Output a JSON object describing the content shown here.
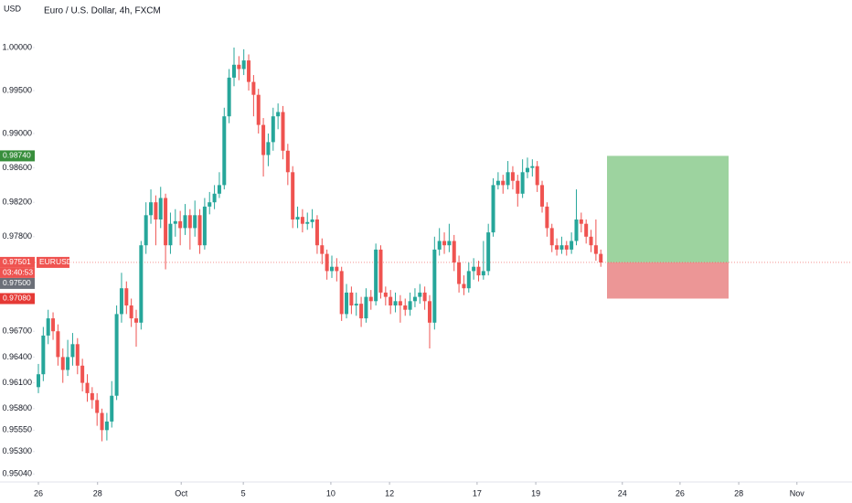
{
  "chart_data": {
    "type": "candlestick",
    "title": "Euro / U.S. Dollar, 4h, FXCM",
    "y_unit": "USD",
    "up_color": "#26a69a",
    "down_color": "#ef5350",
    "grid": false,
    "ylim": [
      0.94947,
      1.00553
    ],
    "yticks": [
      {
        "value": 1.0,
        "label": "1.00000"
      },
      {
        "value": 0.995,
        "label": "0.99500"
      },
      {
        "value": 0.99,
        "label": "0.99000"
      },
      {
        "value": 0.986,
        "label": "0.98600"
      },
      {
        "value": 0.982,
        "label": "0.98200"
      },
      {
        "value": 0.978,
        "label": "0.97800"
      },
      {
        "value": 0.967,
        "label": "0.96700"
      },
      {
        "value": 0.964,
        "label": "0.96400"
      },
      {
        "value": 0.961,
        "label": "0.96100"
      },
      {
        "value": 0.958,
        "label": "0.95800"
      },
      {
        "value": 0.9555,
        "label": "0.95550"
      },
      {
        "value": 0.953,
        "label": "0.95300"
      },
      {
        "value": 0.9504,
        "label": "0.95040"
      }
    ],
    "xlim": [
      -7.85,
      166.36
    ],
    "xticks": [
      {
        "value": 0,
        "label": "26"
      },
      {
        "value": 12.1,
        "label": "28"
      },
      {
        "value": 29.2,
        "label": "Oct"
      },
      {
        "value": 41.9,
        "label": "5"
      },
      {
        "value": 59.8,
        "label": "10"
      },
      {
        "value": 71.8,
        "label": "12"
      },
      {
        "value": 89.7,
        "label": "17"
      },
      {
        "value": 101.7,
        "label": "19"
      },
      {
        "value": 119.4,
        "label": "24"
      },
      {
        "value": 131.2,
        "label": "26"
      },
      {
        "value": 143.2,
        "label": "28"
      },
      {
        "value": 155.1,
        "label": "Nov"
      }
    ],
    "open": [
      0.9605,
      0.962,
      0.9665,
      0.9685,
      0.967,
      0.964,
      0.9625,
      0.964,
      0.9655,
      0.963,
      0.961,
      0.9598,
      0.959,
      0.9575,
      0.9555,
      0.9565,
      0.9595,
      0.969,
      0.972,
      0.97,
      0.9685,
      0.968,
      0.977,
      0.9805,
      0.982,
      0.98,
      0.9825,
      0.977,
      0.9795,
      0.9798,
      0.979,
      0.9805,
      0.979,
      0.9805,
      0.977,
      0.9815,
      0.982,
      0.983,
      0.984,
      0.992,
      0.9965,
      0.998,
      0.9975,
      0.9985,
      0.996,
      0.9945,
      0.991,
      0.9875,
      0.989,
      0.992,
      0.9925,
      0.988,
      0.9855,
      0.98,
      0.9803,
      0.9795,
      0.9797,
      0.98,
      0.977,
      0.976,
      0.974,
      0.9745,
      0.974,
      0.969,
      0.9715,
      0.97,
      0.9702,
      0.9685,
      0.971,
      0.9705,
      0.9765,
      0.9715,
      0.971,
      0.97,
      0.9705,
      0.97,
      0.9695,
      0.9705,
      0.971,
      0.9715,
      0.9705,
      0.968,
      0.9765,
      0.9775,
      0.977,
      0.9775,
      0.975,
      0.9725,
      0.972,
      0.974,
      0.9745,
      0.9735,
      0.974,
      0.9785,
      0.984,
      0.9845,
      0.984,
      0.9855,
      0.9845,
      0.983,
      0.9855,
      0.986,
      0.9862,
      0.984,
      0.9815,
      0.979,
      0.977,
      0.9765,
      0.977,
      0.9765,
      0.9775,
      0.98,
      0.9795,
      0.978,
      0.977,
      0.976
    ],
    "high": [
      0.9632,
      0.9675,
      0.9695,
      0.9692,
      0.9678,
      0.965,
      0.966,
      0.9668,
      0.9662,
      0.9638,
      0.962,
      0.9605,
      0.9598,
      0.958,
      0.9575,
      0.9612,
      0.97,
      0.9738,
      0.9728,
      0.9708,
      0.9695,
      0.9775,
      0.982,
      0.9835,
      0.9828,
      0.9838,
      0.983,
      0.9808,
      0.9812,
      0.981,
      0.9818,
      0.9812,
      0.9822,
      0.9812,
      0.9825,
      0.9832,
      0.984,
      0.9855,
      0.993,
      0.9975,
      1.0,
      0.999,
      0.9998,
      0.9992,
      0.9968,
      0.9952,
      0.9918,
      0.99,
      0.993,
      0.9935,
      0.9932,
      0.9888,
      0.9862,
      0.9815,
      0.9812,
      0.9808,
      0.9812,
      0.9805,
      0.9778,
      0.9765,
      0.9758,
      0.9755,
      0.9745,
      0.9725,
      0.9722,
      0.9715,
      0.971,
      0.972,
      0.9718,
      0.9772,
      0.977,
      0.9722,
      0.9718,
      0.9715,
      0.9712,
      0.9708,
      0.9715,
      0.972,
      0.9725,
      0.9722,
      0.9712,
      0.978,
      0.979,
      0.9785,
      0.9795,
      0.9782,
      0.9758,
      0.9735,
      0.975,
      0.9755,
      0.9752,
      0.9775,
      0.9795,
      0.9848,
      0.9855,
      0.9852,
      0.9868,
      0.9862,
      0.9852,
      0.987,
      0.9872,
      0.987,
      0.9868,
      0.9845,
      0.982,
      0.9795,
      0.9778,
      0.978,
      0.9775,
      0.9785,
      0.9835,
      0.9808,
      0.98,
      0.9788,
      0.98,
      0.9765
    ],
    "low": [
      0.9598,
      0.9612,
      0.9655,
      0.966,
      0.963,
      0.961,
      0.9618,
      0.963,
      0.962,
      0.96,
      0.9588,
      0.958,
      0.956,
      0.9542,
      0.9543,
      0.9558,
      0.959,
      0.968,
      0.969,
      0.9675,
      0.9652,
      0.9672,
      0.976,
      0.9795,
      0.977,
      0.979,
      0.9742,
      0.976,
      0.978,
      0.977,
      0.9782,
      0.9765,
      0.978,
      0.976,
      0.9765,
      0.9806,
      0.9812,
      0.9825,
      0.9835,
      0.9912,
      0.9955,
      0.9962,
      0.9968,
      0.995,
      0.992,
      0.99,
      0.985,
      0.9862,
      0.988,
      0.9905,
      0.987,
      0.984,
      0.979,
      0.979,
      0.9785,
      0.9788,
      0.979,
      0.976,
      0.9748,
      0.973,
      0.9732,
      0.9728,
      0.9682,
      0.9685,
      0.969,
      0.9688,
      0.9675,
      0.968,
      0.9695,
      0.97,
      0.9708,
      0.97,
      0.969,
      0.9692,
      0.968,
      0.9688,
      0.9688,
      0.9698,
      0.9702,
      0.9695,
      0.965,
      0.9672,
      0.9758,
      0.976,
      0.9762,
      0.974,
      0.9715,
      0.9712,
      0.9715,
      0.973,
      0.9728,
      0.973,
      0.9735,
      0.978,
      0.9835,
      0.983,
      0.9835,
      0.9835,
      0.9815,
      0.9825,
      0.9848,
      0.985,
      0.9832,
      0.9808,
      0.978,
      0.9762,
      0.9758,
      0.976,
      0.9758,
      0.976,
      0.977,
      0.9785,
      0.9772,
      0.9762,
      0.9752,
      0.9745
    ],
    "close": [
      0.962,
      0.9665,
      0.9685,
      0.967,
      0.964,
      0.9625,
      0.964,
      0.9655,
      0.963,
      0.961,
      0.9598,
      0.959,
      0.9575,
      0.9555,
      0.9565,
      0.9595,
      0.969,
      0.972,
      0.97,
      0.9685,
      0.968,
      0.977,
      0.9805,
      0.982,
      0.98,
      0.9825,
      0.977,
      0.9795,
      0.9798,
      0.979,
      0.9805,
      0.979,
      0.9805,
      0.977,
      0.9815,
      0.982,
      0.983,
      0.984,
      0.992,
      0.9965,
      0.998,
      0.9975,
      0.9985,
      0.996,
      0.9945,
      0.991,
      0.9875,
      0.989,
      0.992,
      0.9925,
      0.988,
      0.9855,
      0.98,
      0.9803,
      0.9795,
      0.9797,
      0.98,
      0.977,
      0.976,
      0.974,
      0.9745,
      0.974,
      0.969,
      0.9715,
      0.97,
      0.9702,
      0.9685,
      0.971,
      0.9705,
      0.9765,
      0.9715,
      0.971,
      0.97,
      0.9705,
      0.97,
      0.9695,
      0.9705,
      0.971,
      0.9715,
      0.9705,
      0.968,
      0.9765,
      0.9775,
      0.977,
      0.9775,
      0.975,
      0.9725,
      0.972,
      0.974,
      0.9745,
      0.9735,
      0.974,
      0.9785,
      0.984,
      0.9845,
      0.984,
      0.9855,
      0.9845,
      0.983,
      0.9855,
      0.986,
      0.9862,
      0.984,
      0.9815,
      0.979,
      0.977,
      0.9765,
      0.977,
      0.9765,
      0.9775,
      0.98,
      0.9795,
      0.978,
      0.977,
      0.976,
      0.975
    ],
    "price_labels": [
      {
        "value": 0.9874,
        "label": "0.98740",
        "color": "#388e3c"
      },
      {
        "value": 0.97501,
        "label": "0.97501",
        "color": "#ef5350"
      },
      {
        "value": 0.975,
        "label": "0.97500",
        "color": "#6b6f78"
      },
      {
        "value": 0.9708,
        "label": "0.97080",
        "color": "#e53935"
      }
    ],
    "symbol_tag": "EURUSD",
    "countdown": "03:40:53"
  }
}
